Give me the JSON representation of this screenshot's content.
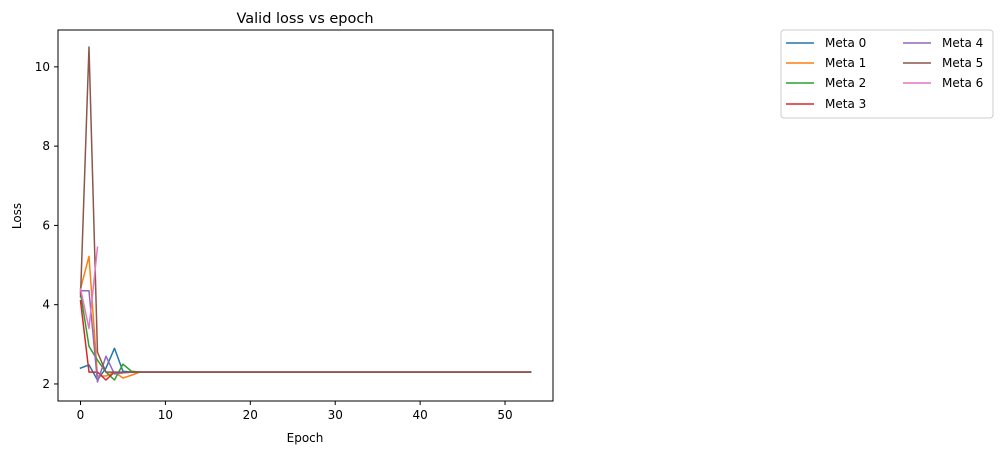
{
  "chart_data": {
    "type": "line",
    "title": "Valid loss vs epoch",
    "xlabel": "Epoch",
    "ylabel": "Loss",
    "xlim": [
      -2.65,
      55.65
    ],
    "ylim": [
      1.57,
      10.93
    ],
    "xticks": [
      0,
      10,
      20,
      30,
      40,
      50
    ],
    "yticks": [
      2,
      4,
      6,
      8,
      10
    ],
    "grid": false,
    "legend": {
      "placement": "outside-right-top",
      "columns": 2
    },
    "series": [
      {
        "name": "Meta 0",
        "color": "#1f77b4",
        "x": [
          0,
          1,
          2,
          3,
          4,
          5,
          6,
          7,
          8,
          10,
          15,
          20,
          25,
          30,
          35,
          40,
          45,
          50,
          53
        ],
        "y": [
          2.4,
          2.48,
          2.1,
          2.4,
          2.9,
          2.32,
          2.3,
          2.3,
          2.3,
          2.3,
          2.3,
          2.3,
          2.3,
          2.3,
          2.3,
          2.3,
          2.3,
          2.3,
          2.3
        ]
      },
      {
        "name": "Meta 1",
        "color": "#ff7f0e",
        "x": [
          0,
          1,
          2,
          3,
          4,
          5,
          6,
          7,
          8,
          10,
          15,
          20,
          25,
          30,
          35,
          40,
          45,
          50,
          53
        ],
        "y": [
          4.4,
          5.22,
          2.2,
          2.2,
          2.3,
          2.15,
          2.22,
          2.3,
          2.3,
          2.3,
          2.3,
          2.3,
          2.3,
          2.3,
          2.3,
          2.3,
          2.3,
          2.3,
          2.3
        ]
      },
      {
        "name": "Meta 2",
        "color": "#2ca02c",
        "x": [
          0,
          1,
          2,
          3,
          4,
          5,
          6,
          7,
          8,
          10,
          15,
          20,
          25,
          30,
          35,
          40,
          45,
          50,
          53
        ],
        "y": [
          4.3,
          2.95,
          2.6,
          2.3,
          2.1,
          2.5,
          2.32,
          2.3,
          2.3,
          2.3,
          2.3,
          2.3,
          2.3,
          2.3,
          2.3,
          2.3,
          2.3,
          2.3,
          2.3
        ]
      },
      {
        "name": "Meta 3",
        "color": "#d62728",
        "x": [
          0,
          1,
          2,
          3,
          4,
          5,
          6,
          7,
          8,
          10,
          15,
          20,
          25,
          30,
          35,
          40,
          45,
          50,
          53
        ],
        "y": [
          4.1,
          2.3,
          2.3,
          2.1,
          2.3,
          2.28,
          2.3,
          2.3,
          2.3,
          2.3,
          2.3,
          2.3,
          2.3,
          2.3,
          2.3,
          2.3,
          2.3,
          2.3,
          2.3
        ]
      },
      {
        "name": "Meta 4",
        "color": "#9467bd",
        "x": [
          0,
          1,
          2,
          3,
          4,
          5,
          6,
          7,
          8,
          10,
          15,
          20,
          25,
          30,
          35,
          40,
          45,
          50,
          53
        ],
        "y": [
          4.35,
          4.35,
          2.05,
          2.7,
          2.25,
          2.28,
          2.3,
          2.3,
          2.3,
          2.3,
          2.3,
          2.3,
          2.3,
          2.3,
          2.3,
          2.3,
          2.3,
          2.3,
          2.3
        ]
      },
      {
        "name": "Meta 5",
        "color": "#8c564b",
        "x": [
          0,
          1,
          2,
          3,
          4,
          5,
          6,
          7,
          8,
          10,
          15,
          20,
          25,
          30,
          35,
          40,
          45,
          50,
          53
        ],
        "y": [
          4.2,
          10.5,
          2.8,
          2.3,
          2.3,
          2.3,
          2.3,
          2.3,
          2.3,
          2.3,
          2.3,
          2.3,
          2.3,
          2.3,
          2.3,
          2.3,
          2.3,
          2.3,
          2.3
        ]
      },
      {
        "name": "Meta 6",
        "color": "#e377c2",
        "x": [
          0,
          1,
          2
        ],
        "y": [
          4.4,
          3.4,
          5.45
        ]
      }
    ]
  }
}
